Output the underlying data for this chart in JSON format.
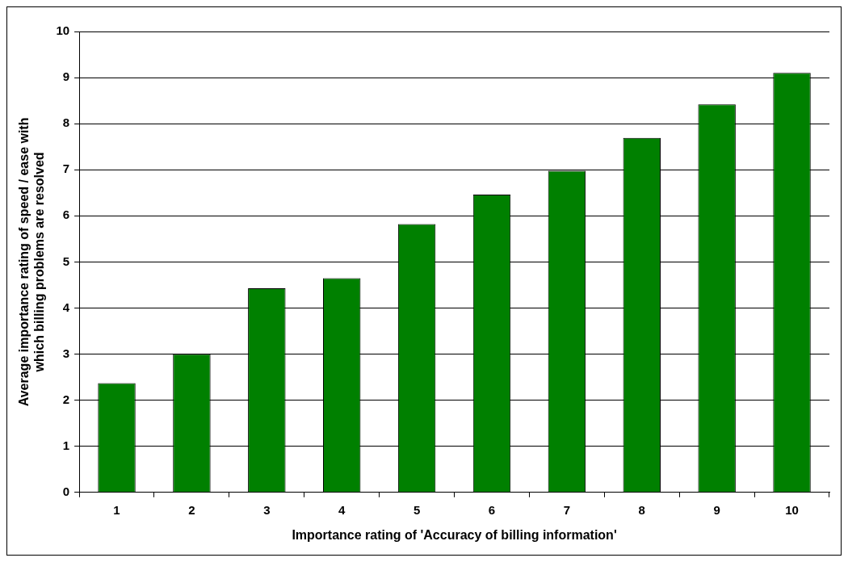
{
  "chart_data": {
    "type": "bar",
    "xlabel": "Importance rating of 'Accuracy of billing information'",
    "ylabel": "Average importance rating of speed / ease with which billing problems are resolved",
    "categories": [
      "1",
      "2",
      "3",
      "4",
      "5",
      "6",
      "7",
      "8",
      "9",
      "10"
    ],
    "values": [
      2.37,
      3.0,
      4.43,
      4.65,
      5.82,
      6.46,
      6.98,
      7.69,
      8.42,
      9.1
    ],
    "color": "#008000",
    "ylim": [
      0,
      10
    ],
    "yticks": [
      0,
      1,
      2,
      3,
      4,
      5,
      6,
      7,
      8,
      9,
      10
    ],
    "grid": "y",
    "legend": false
  }
}
